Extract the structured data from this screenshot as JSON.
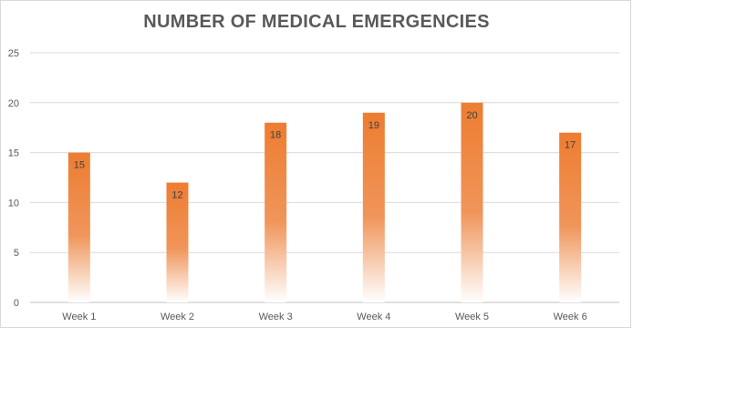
{
  "chart_data": {
    "type": "bar",
    "title": "NUMBER OF MEDICAL EMERGENCIES",
    "categories": [
      "Week 1",
      "Week 2",
      "Week 3",
      "Week 4",
      "Week 5",
      "Week 6"
    ],
    "values": [
      15,
      12,
      18,
      19,
      20,
      17
    ],
    "ylim": [
      0,
      25
    ],
    "yticks": [
      0,
      5,
      10,
      15,
      20,
      25
    ],
    "grid": true,
    "bar_color": "#ed7d31",
    "bar_fade_color": "#ffffff",
    "data_labels": true
  }
}
